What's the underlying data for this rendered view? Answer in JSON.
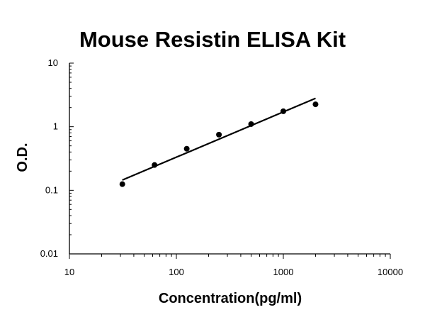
{
  "chart_data": {
    "type": "scatter",
    "title": "Mouse Resistin ELISA Kit",
    "xlabel": "Concentration(pg/ml)",
    "ylabel": "O.D.",
    "xscale": "log",
    "yscale": "log",
    "xlim": [
      10,
      10000
    ],
    "ylim": [
      0.01,
      10
    ],
    "x_ticks": [
      "10",
      "100",
      "1000",
      "10000"
    ],
    "y_ticks": [
      "0.01",
      "0.1",
      "1",
      "10"
    ],
    "grid": false,
    "legend": "none",
    "series": [
      {
        "kind": "points",
        "x": [
          31.25,
          62.5,
          125,
          250,
          500,
          1000,
          2000
        ],
        "y": [
          0.125,
          0.25,
          0.45,
          0.75,
          1.1,
          1.75,
          2.25
        ]
      },
      {
        "kind": "fit-line",
        "x": [
          31.25,
          2000
        ],
        "y": [
          0.145,
          2.8
        ]
      }
    ],
    "colors": {
      "points": "#000000",
      "line": "#000000",
      "axes": "#000000"
    }
  }
}
